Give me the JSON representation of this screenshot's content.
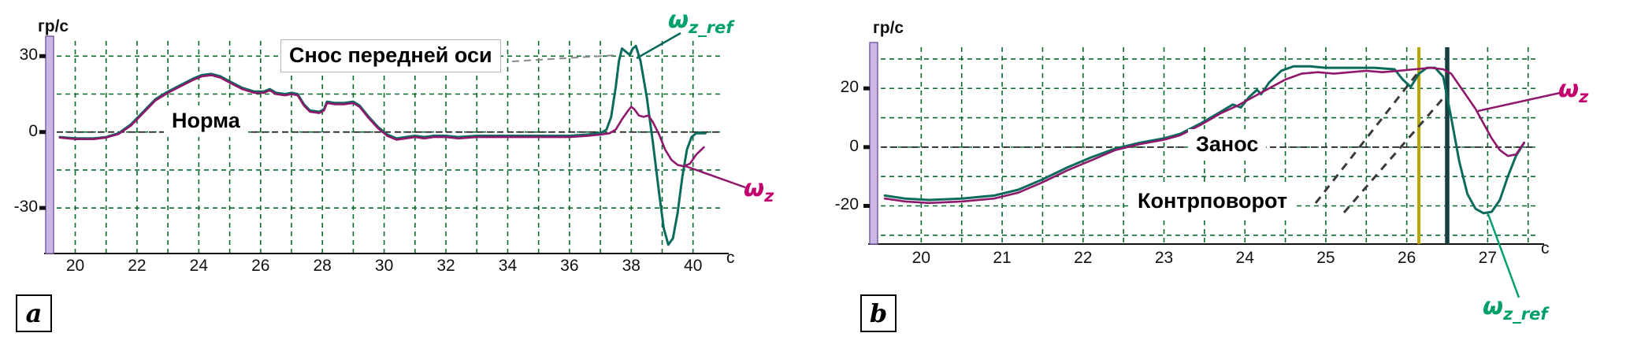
{
  "page": {
    "background": "#ffffff"
  },
  "panels": [
    {
      "id": "a",
      "corner_label": "a",
      "y_axis_label": "гр/с",
      "x_axis_unit": "с",
      "annotations": [
        {
          "text": "Снос передней оси"
        },
        {
          "text": "Норма"
        }
      ],
      "legend": {
        "ref": {
          "symbol": "ω",
          "sub": "z_ref",
          "color": "#00a06a"
        },
        "wz": {
          "symbol": "ω",
          "sub": "z",
          "color": "#c4006e"
        }
      }
    },
    {
      "id": "b",
      "corner_label": "b",
      "y_axis_label": "гр/с",
      "x_axis_unit": "с",
      "annotations": [
        {
          "text": "Занос"
        },
        {
          "text": "Контрповорот"
        }
      ],
      "legend": {
        "ref": {
          "symbol": "ω",
          "sub": "z_ref",
          "color": "#00a06a"
        },
        "wz": {
          "symbol": "ω",
          "sub": "z",
          "color": "#c4006e"
        }
      }
    }
  ],
  "chart_data": [
    {
      "type": "line",
      "panel": "a",
      "title": "",
      "ylabel": "гр/с",
      "x_unit": "с",
      "xlim": [
        19.4,
        40.9
      ],
      "ylim": [
        -48,
        36
      ],
      "xticks": [
        20,
        22,
        24,
        26,
        28,
        30,
        32,
        34,
        36,
        38,
        40
      ],
      "yticks": [
        30,
        0,
        -30
      ],
      "grid": {
        "color": "#0a6a2a",
        "x": [
          20,
          21,
          22,
          23,
          24,
          25,
          26,
          27,
          28,
          29,
          30,
          31,
          32,
          33,
          34,
          35,
          36,
          37,
          38,
          39,
          40
        ],
        "y": [
          30,
          15,
          0,
          -15,
          -30
        ]
      },
      "axis_bar_color": "#cbb7e6",
      "series": [
        {
          "id": "omega-z-ref",
          "name": "ω_z_ref",
          "color": "#0b6b5d",
          "width": 3,
          "points": [
            [
              19.5,
              -2
            ],
            [
              20,
              -2.5
            ],
            [
              20.6,
              -2.5
            ],
            [
              21,
              -2
            ],
            [
              21.4,
              -0.5
            ],
            [
              21.8,
              3
            ],
            [
              22.2,
              8
            ],
            [
              22.6,
              13
            ],
            [
              23,
              16
            ],
            [
              23.4,
              18.5
            ],
            [
              23.8,
              21
            ],
            [
              24.1,
              22.5
            ],
            [
              24.4,
              23
            ],
            [
              24.7,
              22
            ],
            [
              25,
              20
            ],
            [
              25.4,
              17.5
            ],
            [
              25.8,
              16
            ],
            [
              26.1,
              16
            ],
            [
              26.3,
              17
            ],
            [
              26.5,
              15.5
            ],
            [
              26.8,
              15
            ],
            [
              27,
              15.5
            ],
            [
              27.2,
              15
            ],
            [
              27.4,
              11
            ],
            [
              27.6,
              8.5
            ],
            [
              27.9,
              8
            ],
            [
              28.05,
              9
            ],
            [
              28.15,
              12
            ],
            [
              28.4,
              11.5
            ],
            [
              28.7,
              11.5
            ],
            [
              29,
              12
            ],
            [
              29.2,
              10.5
            ],
            [
              29.5,
              6
            ],
            [
              29.8,
              2
            ],
            [
              30.1,
              -1
            ],
            [
              30.4,
              -2.5
            ],
            [
              30.7,
              -2
            ],
            [
              31,
              -1.5
            ],
            [
              31.3,
              -2
            ],
            [
              31.6,
              -1.5
            ],
            [
              32,
              -1.5
            ],
            [
              32.4,
              -2
            ],
            [
              33,
              -1.5
            ],
            [
              34,
              -1.5
            ],
            [
              35,
              -1.5
            ],
            [
              36,
              -1.5
            ],
            [
              36.6,
              -1
            ],
            [
              37,
              -0.5
            ],
            [
              37.2,
              1
            ],
            [
              37.35,
              6
            ],
            [
              37.5,
              18
            ],
            [
              37.6,
              28
            ],
            [
              37.7,
              33
            ],
            [
              37.8,
              32
            ],
            [
              37.95,
              30.5
            ],
            [
              38.05,
              33
            ],
            [
              38.15,
              34
            ],
            [
              38.3,
              28
            ],
            [
              38.5,
              14
            ],
            [
              38.7,
              -4
            ],
            [
              38.9,
              -24
            ],
            [
              39.05,
              -38
            ],
            [
              39.2,
              -44.5
            ],
            [
              39.35,
              -42
            ],
            [
              39.5,
              -32
            ],
            [
              39.65,
              -18
            ],
            [
              39.8,
              -7
            ],
            [
              39.95,
              -2
            ],
            [
              40.1,
              -0.5
            ],
            [
              40.4,
              -0.5
            ]
          ]
        },
        {
          "id": "omega-z",
          "name": "ω_z",
          "color": "#8f186d",
          "width": 2.6,
          "points": [
            [
              19.5,
              -2.2
            ],
            [
              20,
              -2.8
            ],
            [
              20.6,
              -2.8
            ],
            [
              21,
              -2.2
            ],
            [
              21.4,
              -0.8
            ],
            [
              21.8,
              2.5
            ],
            [
              22.2,
              7.5
            ],
            [
              22.6,
              12.5
            ],
            [
              23,
              15.5
            ],
            [
              23.4,
              18
            ],
            [
              23.8,
              20.5
            ],
            [
              24.1,
              22
            ],
            [
              24.4,
              22.5
            ],
            [
              24.7,
              21.5
            ],
            [
              25,
              19.5
            ],
            [
              25.4,
              17
            ],
            [
              25.8,
              15.5
            ],
            [
              26.1,
              15.5
            ],
            [
              26.3,
              16.5
            ],
            [
              26.5,
              15
            ],
            [
              26.8,
              14.5
            ],
            [
              27,
              15
            ],
            [
              27.2,
              14.5
            ],
            [
              27.4,
              10.5
            ],
            [
              27.6,
              8
            ],
            [
              27.9,
              7.5
            ],
            [
              28.05,
              8.5
            ],
            [
              28.15,
              11.5
            ],
            [
              28.4,
              11
            ],
            [
              28.7,
              11
            ],
            [
              29,
              11.5
            ],
            [
              29.2,
              10
            ],
            [
              29.5,
              5.5
            ],
            [
              29.8,
              1.5
            ],
            [
              30.1,
              -1.5
            ],
            [
              30.4,
              -3
            ],
            [
              30.7,
              -2.5
            ],
            [
              31,
              -2
            ],
            [
              31.3,
              -2.5
            ],
            [
              31.6,
              -2
            ],
            [
              32,
              -2
            ],
            [
              32.4,
              -2.5
            ],
            [
              33,
              -2
            ],
            [
              34,
              -2
            ],
            [
              35,
              -2
            ],
            [
              36,
              -2
            ],
            [
              36.6,
              -1.5
            ],
            [
              37,
              -1
            ],
            [
              37.3,
              -0.5
            ],
            [
              37.5,
              1
            ],
            [
              37.7,
              5
            ],
            [
              37.9,
              8.5
            ],
            [
              38,
              10
            ],
            [
              38.1,
              9
            ],
            [
              38.25,
              6.5
            ],
            [
              38.4,
              6
            ],
            [
              38.55,
              6.5
            ],
            [
              38.7,
              4
            ],
            [
              38.9,
              -1
            ],
            [
              39.1,
              -7
            ],
            [
              39.3,
              -11
            ],
            [
              39.5,
              -13
            ],
            [
              39.7,
              -13.5
            ],
            [
              39.9,
              -12.5
            ],
            [
              40.1,
              -9
            ],
            [
              40.35,
              -6
            ]
          ]
        }
      ],
      "markers": []
    },
    {
      "type": "line",
      "panel": "b",
      "title": "",
      "ylabel": "гр/с",
      "x_unit": "с",
      "xlim": [
        19.5,
        27.6
      ],
      "ylim": [
        -33,
        34
      ],
      "xticks": [
        20,
        21,
        22,
        23,
        24,
        25,
        26,
        27
      ],
      "yticks": [
        20,
        0,
        -20
      ],
      "grid": {
        "color": "#0a6a2a",
        "x": [
          20,
          20.5,
          21,
          21.5,
          22,
          22.5,
          23,
          23.5,
          24,
          24.5,
          25,
          25.5,
          26,
          26.5,
          27,
          27.5
        ],
        "y": [
          30,
          20,
          10,
          0,
          -10,
          -20,
          -30
        ]
      },
      "axis_bar_color": "#cbb7e6",
      "series": [
        {
          "id": "omega-z-ref",
          "name": "ω_z_ref",
          "color": "#0b6b5d",
          "width": 3,
          "points": [
            [
              19.55,
              -16.5
            ],
            [
              19.8,
              -17.5
            ],
            [
              20.1,
              -18
            ],
            [
              20.5,
              -17.5
            ],
            [
              20.9,
              -16.5
            ],
            [
              21.2,
              -14.5
            ],
            [
              21.5,
              -11
            ],
            [
              21.8,
              -7
            ],
            [
              22.1,
              -3.5
            ],
            [
              22.4,
              -0.5
            ],
            [
              22.7,
              1.5
            ],
            [
              23,
              3
            ],
            [
              23.2,
              4.5
            ],
            [
              23.45,
              8
            ],
            [
              23.7,
              12
            ],
            [
              23.85,
              14.5
            ],
            [
              23.95,
              13.5
            ],
            [
              24.05,
              17
            ],
            [
              24.15,
              19.5
            ],
            [
              24.2,
              18
            ],
            [
              24.3,
              22
            ],
            [
              24.45,
              26
            ],
            [
              24.6,
              27.5
            ],
            [
              24.8,
              27.5
            ],
            [
              25,
              27
            ],
            [
              25.3,
              27
            ],
            [
              25.6,
              27
            ],
            [
              25.85,
              26.5
            ],
            [
              25.95,
              23
            ],
            [
              26.05,
              20.5
            ],
            [
              26.15,
              25
            ],
            [
              26.25,
              27
            ],
            [
              26.35,
              27
            ],
            [
              26.45,
              24
            ],
            [
              26.55,
              10
            ],
            [
              26.65,
              -5
            ],
            [
              26.75,
              -16
            ],
            [
              26.85,
              -21
            ],
            [
              26.95,
              -22.5
            ],
            [
              27.05,
              -22
            ],
            [
              27.15,
              -18
            ],
            [
              27.25,
              -10
            ],
            [
              27.35,
              -3
            ],
            [
              27.45,
              1.5
            ]
          ]
        },
        {
          "id": "omega-z",
          "name": "ω_z",
          "color": "#8f186d",
          "width": 2.6,
          "points": [
            [
              19.55,
              -17.5
            ],
            [
              19.8,
              -18.5
            ],
            [
              20.1,
              -19
            ],
            [
              20.5,
              -18.5
            ],
            [
              20.9,
              -17.5
            ],
            [
              21.2,
              -15.5
            ],
            [
              21.5,
              -12
            ],
            [
              21.8,
              -8
            ],
            [
              22.1,
              -4.5
            ],
            [
              22.4,
              -1
            ],
            [
              22.7,
              1
            ],
            [
              23,
              2.5
            ],
            [
              23.2,
              4
            ],
            [
              23.45,
              7.5
            ],
            [
              23.7,
              11.5
            ],
            [
              23.9,
              14
            ],
            [
              24.1,
              17
            ],
            [
              24.3,
              20
            ],
            [
              24.5,
              23
            ],
            [
              24.7,
              25
            ],
            [
              24.9,
              25.5
            ],
            [
              25.1,
              25
            ],
            [
              25.3,
              25.5
            ],
            [
              25.5,
              26
            ],
            [
              25.7,
              25.5
            ],
            [
              25.9,
              26
            ],
            [
              26.1,
              26.5
            ],
            [
              26.3,
              27
            ],
            [
              26.45,
              26.5
            ],
            [
              26.55,
              25
            ],
            [
              26.65,
              21
            ],
            [
              26.75,
              17
            ],
            [
              26.85,
              13
            ],
            [
              26.95,
              8
            ],
            [
              27.05,
              3
            ],
            [
              27.15,
              -1
            ],
            [
              27.25,
              -3
            ],
            [
              27.35,
              -2.5
            ],
            [
              27.45,
              1.5
            ]
          ]
        }
      ],
      "markers": [
        {
          "x": 26.15,
          "color": "#b7a600",
          "width": 4,
          "name": "event-marker-yellow"
        },
        {
          "x": 26.5,
          "color": "#173f3f",
          "width": 5.5,
          "name": "event-marker-dark"
        }
      ]
    }
  ]
}
